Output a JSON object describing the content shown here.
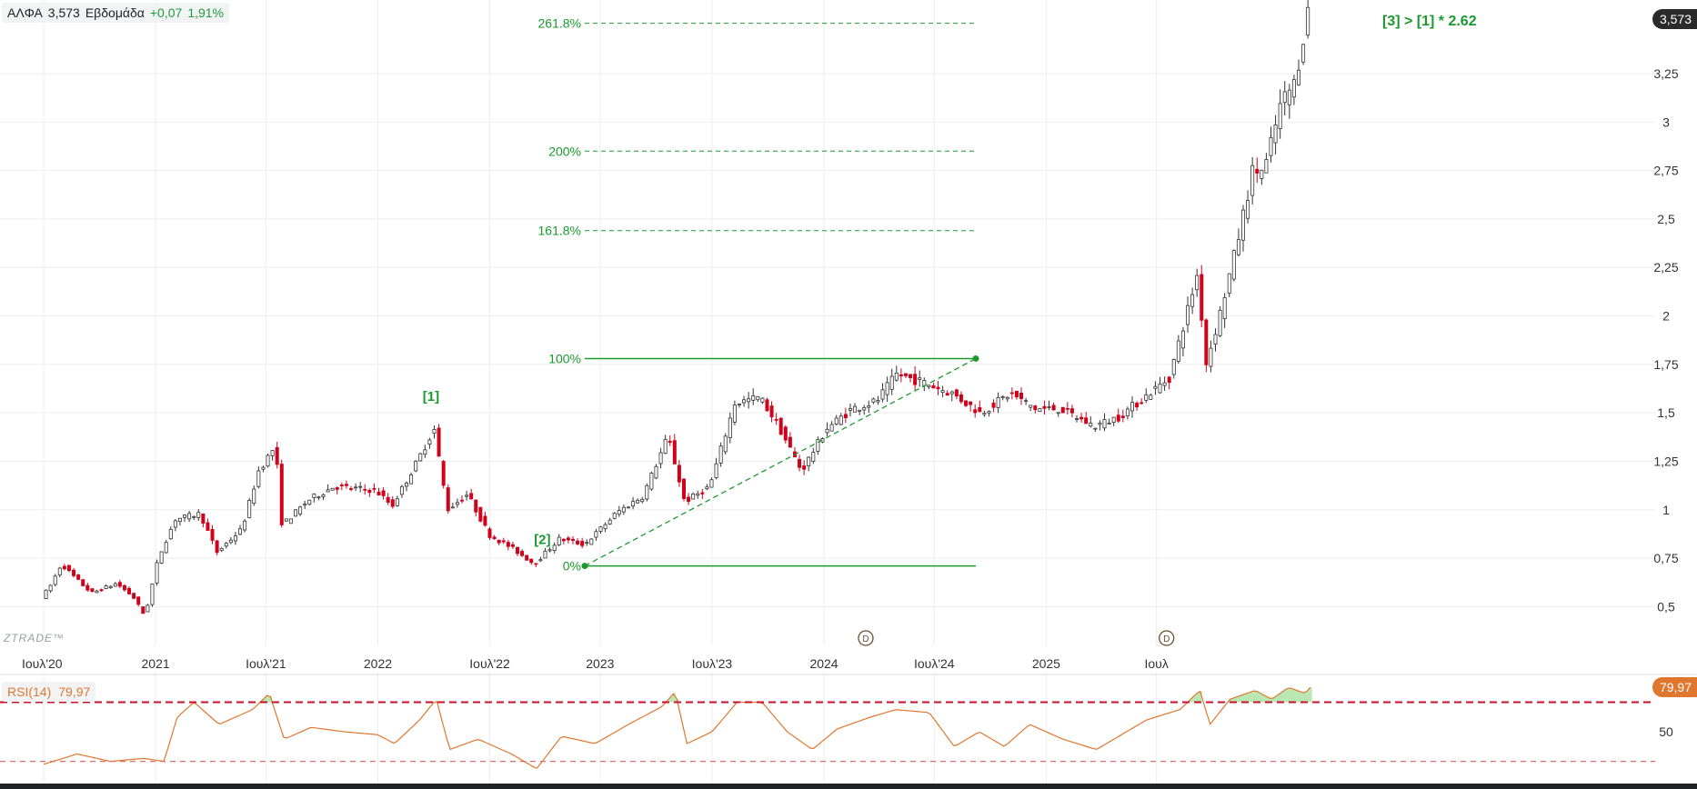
{
  "header": {
    "symbol": "ΑΛΦΑ",
    "last": "3,573",
    "period": "Εβδομάδα",
    "change": "+0,07",
    "change_pct": "1,91%"
  },
  "watermark": "ZTRADE™",
  "last_badge": "3,573",
  "colors": {
    "up": "#ffffff",
    "up_border": "#333333",
    "down": "#d0021b",
    "fib": "#1a9a2e",
    "rsi": "#e0772f",
    "rsi_band": "#c8102e",
    "rsi_fill": "#b9e8b4",
    "grid": "#eeeeee"
  },
  "icons": {
    "dividend_marker": "dividend-circle-icon"
  },
  "chart_data": [
    {
      "type": "candlestick",
      "title": "ΑΛΦΑ",
      "xlabel": "",
      "ylabel": "",
      "ylim": [
        0.3,
        3.63
      ],
      "x_ticks": [
        "Ιουλ'20",
        "2021",
        "Ιουλ'21",
        "2022",
        "Ιουλ'22",
        "2023",
        "Ιουλ'23",
        "2024",
        "Ιουλ'24",
        "2025",
        "Ιουλ"
      ],
      "y_ticks": [
        0.5,
        0.75,
        1,
        1.25,
        1.5,
        1.75,
        2,
        2.25,
        2.5,
        2.75,
        3,
        3.25
      ],
      "y_tick_labels": [
        "0,5",
        "0,75",
        "1",
        "1,25",
        "1,5",
        "1,75",
        "2",
        "2,25",
        "2,5",
        "2,75",
        "3",
        "3,25"
      ],
      "keypoints": [
        {
          "t": 0,
          "v": 0.55
        },
        {
          "t": 0.05,
          "v": 0.6
        },
        {
          "t": 0.12,
          "v": 0.72
        },
        {
          "t": 0.2,
          "v": 0.65
        },
        {
          "t": 0.3,
          "v": 0.57
        },
        {
          "t": 0.45,
          "v": 0.62
        },
        {
          "t": 0.55,
          "v": 0.55
        },
        {
          "t": 0.62,
          "v": 0.45
        },
        {
          "t": 0.7,
          "v": 0.75
        },
        {
          "t": 0.8,
          "v": 0.95
        },
        {
          "t": 0.95,
          "v": 0.98
        },
        {
          "t": 1.05,
          "v": 0.78
        },
        {
          "t": 1.2,
          "v": 0.9
        },
        {
          "t": 1.3,
          "v": 1.2
        },
        {
          "t": 1.4,
          "v": 1.33
        },
        {
          "t": 1.44,
          "v": 0.92
        },
        {
          "t": 1.6,
          "v": 1.05
        },
        {
          "t": 1.75,
          "v": 1.12
        },
        {
          "t": 2.0,
          "v": 1.1
        },
        {
          "t": 2.1,
          "v": 1.02
        },
        {
          "t": 2.25,
          "v": 1.25
        },
        {
          "t": 2.35,
          "v": 1.42
        },
        {
          "t": 2.43,
          "v": 1.0
        },
        {
          "t": 2.55,
          "v": 1.08
        },
        {
          "t": 2.68,
          "v": 0.87
        },
        {
          "t": 2.82,
          "v": 0.8
        },
        {
          "t": 2.95,
          "v": 0.72
        },
        {
          "t": 3.1,
          "v": 0.85
        },
        {
          "t": 3.25,
          "v": 0.82
        },
        {
          "t": 3.45,
          "v": 0.99
        },
        {
          "t": 3.6,
          "v": 1.07
        },
        {
          "t": 3.75,
          "v": 1.38
        },
        {
          "t": 3.85,
          "v": 1.04
        },
        {
          "t": 4.0,
          "v": 1.12
        },
        {
          "t": 4.15,
          "v": 1.55
        },
        {
          "t": 4.3,
          "v": 1.58
        },
        {
          "t": 4.4,
          "v": 1.45
        },
        {
          "t": 4.55,
          "v": 1.2
        },
        {
          "t": 4.7,
          "v": 1.42
        },
        {
          "t": 4.85,
          "v": 1.52
        },
        {
          "t": 5.0,
          "v": 1.56
        },
        {
          "t": 5.12,
          "v": 1.7
        },
        {
          "t": 5.3,
          "v": 1.65
        },
        {
          "t": 5.45,
          "v": 1.6
        },
        {
          "t": 5.62,
          "v": 1.5
        },
        {
          "t": 5.8,
          "v": 1.6
        },
        {
          "t": 5.95,
          "v": 1.52
        },
        {
          "t": 6.1,
          "v": 1.52
        },
        {
          "t": 6.3,
          "v": 1.43
        },
        {
          "t": 6.45,
          "v": 1.48
        },
        {
          "t": 6.6,
          "v": 1.58
        },
        {
          "t": 6.75,
          "v": 1.68
        },
        {
          "t": 6.85,
          "v": 2.0
        },
        {
          "t": 6.92,
          "v": 2.22
        },
        {
          "t": 6.97,
          "v": 1.75
        },
        {
          "t": 7.05,
          "v": 2.0
        },
        {
          "t": 7.15,
          "v": 2.35
        },
        {
          "t": 7.25,
          "v": 2.75
        },
        {
          "t": 7.32,
          "v": 2.75
        },
        {
          "t": 7.42,
          "v": 3.1
        },
        {
          "t": 7.5,
          "v": 3.2
        },
        {
          "t": 7.58,
          "v": 3.57
        }
      ],
      "fibonacci": {
        "levels": [
          {
            "label": "0%",
            "value": 0.71,
            "style": "solid"
          },
          {
            "label": "100%",
            "value": 1.78,
            "style": "solid"
          },
          {
            "label": "161.8%",
            "value": 2.44,
            "style": "dashed"
          },
          {
            "label": "200%",
            "value": 2.85,
            "style": "dashed"
          },
          {
            "label": "261.8%",
            "value": 3.51,
            "style": "dashed"
          }
        ],
        "points": [
          {
            "label": "[1]",
            "t": 2.35,
            "v": 1.42
          },
          {
            "label": "[2]",
            "t": 3.0,
            "v": 0.71
          },
          {
            "label": "[3]",
            "t": 7.58,
            "v": 3.57
          }
        ],
        "signal": "[3] > [1] * 2.62"
      },
      "dividend_markers": [
        4.92,
        6.72
      ]
    },
    {
      "type": "line",
      "title": "RSI(14)",
      "xlabel": "",
      "ylabel": "",
      "last_value": "79,97",
      "ylim": [
        15,
        90
      ],
      "bands": [
        70,
        30
      ],
      "y_ticks": [
        50
      ],
      "y_tick_labels": [
        "50"
      ],
      "keypoints": [
        {
          "t": 0,
          "v": 28
        },
        {
          "t": 0.2,
          "v": 35
        },
        {
          "t": 0.4,
          "v": 30
        },
        {
          "t": 0.6,
          "v": 32
        },
        {
          "t": 0.72,
          "v": 30
        },
        {
          "t": 0.8,
          "v": 60
        },
        {
          "t": 0.9,
          "v": 70
        },
        {
          "t": 1.05,
          "v": 55
        },
        {
          "t": 1.25,
          "v": 65
        },
        {
          "t": 1.35,
          "v": 76
        },
        {
          "t": 1.44,
          "v": 45
        },
        {
          "t": 1.6,
          "v": 53
        },
        {
          "t": 1.8,
          "v": 50
        },
        {
          "t": 2.0,
          "v": 48
        },
        {
          "t": 2.1,
          "v": 42
        },
        {
          "t": 2.25,
          "v": 58
        },
        {
          "t": 2.35,
          "v": 72
        },
        {
          "t": 2.43,
          "v": 38
        },
        {
          "t": 2.6,
          "v": 45
        },
        {
          "t": 2.8,
          "v": 35
        },
        {
          "t": 2.95,
          "v": 25
        },
        {
          "t": 3.1,
          "v": 47
        },
        {
          "t": 3.3,
          "v": 42
        },
        {
          "t": 3.5,
          "v": 55
        },
        {
          "t": 3.7,
          "v": 67
        },
        {
          "t": 3.78,
          "v": 77
        },
        {
          "t": 3.85,
          "v": 42
        },
        {
          "t": 4.0,
          "v": 50
        },
        {
          "t": 4.15,
          "v": 70
        },
        {
          "t": 4.3,
          "v": 70
        },
        {
          "t": 4.45,
          "v": 50
        },
        {
          "t": 4.6,
          "v": 38
        },
        {
          "t": 4.75,
          "v": 52
        },
        {
          "t": 4.95,
          "v": 60
        },
        {
          "t": 5.1,
          "v": 65
        },
        {
          "t": 5.3,
          "v": 63
        },
        {
          "t": 5.45,
          "v": 40
        },
        {
          "t": 5.6,
          "v": 50
        },
        {
          "t": 5.75,
          "v": 40
        },
        {
          "t": 5.9,
          "v": 55
        },
        {
          "t": 6.1,
          "v": 45
        },
        {
          "t": 6.3,
          "v": 38
        },
        {
          "t": 6.45,
          "v": 48
        },
        {
          "t": 6.6,
          "v": 58
        },
        {
          "t": 6.8,
          "v": 65
        },
        {
          "t": 6.92,
          "v": 78
        },
        {
          "t": 6.98,
          "v": 55
        },
        {
          "t": 7.1,
          "v": 72
        },
        {
          "t": 7.25,
          "v": 78
        },
        {
          "t": 7.35,
          "v": 72
        },
        {
          "t": 7.45,
          "v": 80
        },
        {
          "t": 7.55,
          "v": 76
        },
        {
          "t": 7.58,
          "v": 80
        }
      ]
    }
  ]
}
